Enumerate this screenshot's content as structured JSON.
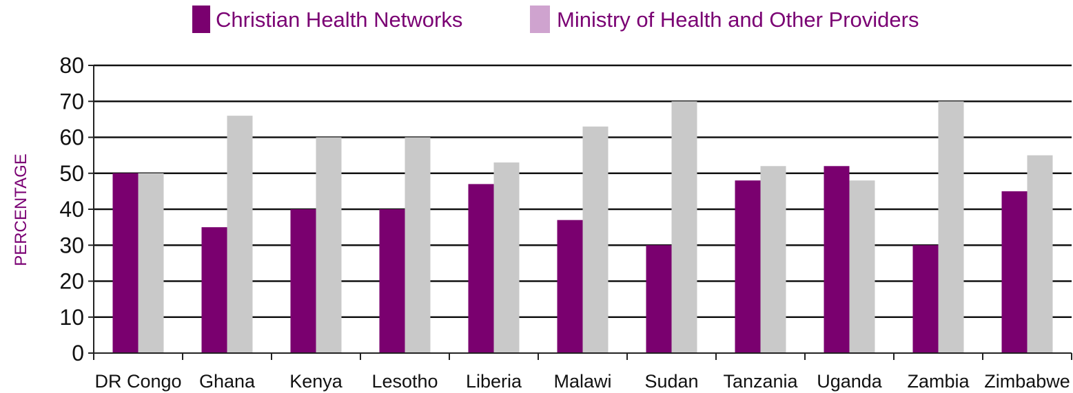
{
  "chart_data": {
    "type": "bar",
    "title": "",
    "xlabel": "",
    "ylabel": "PERCENTAGE",
    "ylim": [
      0,
      80
    ],
    "yticks": [
      0,
      10,
      20,
      30,
      40,
      50,
      60,
      70,
      80
    ],
    "grid": true,
    "legend_position": "top",
    "categories": [
      "DR Congo",
      "Ghana",
      "Kenya",
      "Lesotho",
      "Liberia",
      "Malawi",
      "Sudan",
      "Tanzania",
      "Uganda",
      "Zambia",
      "Zimbabwe"
    ],
    "series": [
      {
        "name": "Christian Health Networks",
        "color": "#7a006f",
        "values": [
          50,
          35,
          40,
          40,
          47,
          37,
          30,
          48,
          52,
          30,
          45
        ]
      },
      {
        "name": "Ministry of Health and Other Providers",
        "color": "#c9c9c9",
        "legend_color": "#cfa3cf",
        "values": [
          50,
          66,
          60,
          60,
          53,
          63,
          70,
          52,
          48,
          70,
          55
        ]
      }
    ],
    "label_color": "#7a0073"
  }
}
